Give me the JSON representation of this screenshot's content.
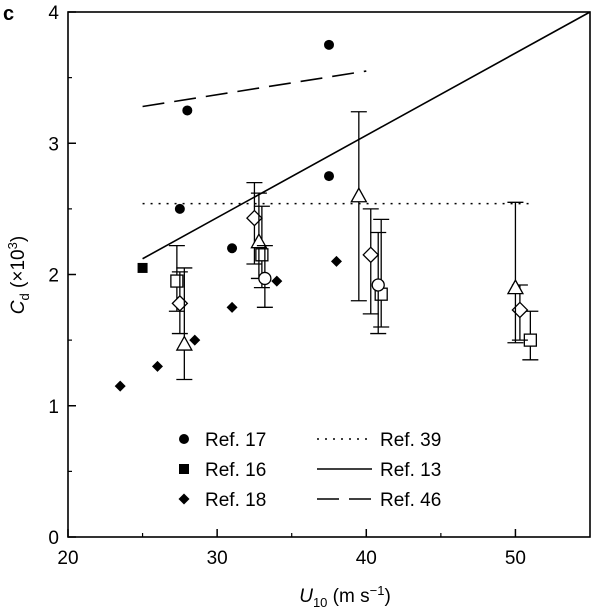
{
  "chart_data": {
    "type": "scatter",
    "panel_label": "c",
    "xlabel": {
      "main": "U",
      "sub": "10",
      "unit_open": " (m s",
      "unit_sup": "−1",
      "unit_close": ")"
    },
    "ylabel": {
      "main": "C",
      "sub": "d",
      "unit_open": " (×10",
      "unit_sup": "3",
      "unit_close": ")"
    },
    "xlim": [
      20,
      55
    ],
    "ylim": [
      0,
      4
    ],
    "xticks": [
      20,
      30,
      40,
      50
    ],
    "yticks": [
      0,
      1,
      2,
      3,
      4
    ],
    "grid": false,
    "legend_position": "bottom-center",
    "series": [
      {
        "name": "Ref. 17",
        "kind": "point",
        "marker": "circle",
        "points": [
          [
            27.5,
            2.5
          ],
          [
            28,
            3.25
          ],
          [
            31,
            2.2
          ],
          [
            37.5,
            3.75
          ],
          [
            37.5,
            2.75
          ]
        ]
      },
      {
        "name": "Ref. 16",
        "kind": "point",
        "marker": "square",
        "points": [
          [
            25,
            2.05
          ]
        ]
      },
      {
        "name": "Ref. 18",
        "kind": "point",
        "marker": "diamond",
        "points": [
          [
            23.5,
            1.15
          ],
          [
            26,
            1.3
          ],
          [
            28.5,
            1.5
          ],
          [
            31,
            1.75
          ],
          [
            34,
            1.95
          ],
          [
            38,
            2.1
          ]
        ]
      },
      {
        "name": "Ref. 39",
        "kind": "line",
        "style": "dotted",
        "points": [
          [
            25,
            2.54
          ],
          [
            51,
            2.54
          ]
        ]
      },
      {
        "name": "Ref. 13",
        "kind": "line",
        "style": "solid",
        "points": [
          [
            25,
            2.12
          ],
          [
            55,
            4.0
          ]
        ]
      },
      {
        "name": "Ref. 46",
        "kind": "line",
        "style": "dashed",
        "points": [
          [
            25,
            3.28
          ],
          [
            40,
            3.55
          ]
        ]
      },
      {
        "name": "",
        "kind": "errorbar",
        "marker": "open-square",
        "points": [
          [
            27.3,
            1.95,
            1.72,
            2.22
          ],
          [
            33,
            2.15,
            1.9,
            2.52
          ],
          [
            41,
            1.85,
            1.6,
            2.42
          ],
          [
            51,
            1.5,
            1.35,
            1.72
          ]
        ]
      },
      {
        "name": "",
        "kind": "errorbar",
        "marker": "open-diamond",
        "points": [
          [
            27.5,
            1.78,
            1.55,
            2.02
          ],
          [
            32.5,
            2.43,
            2.08,
            2.7
          ],
          [
            40.3,
            2.15,
            1.7,
            2.5
          ],
          [
            50.3,
            1.73,
            1.5,
            1.92
          ]
        ]
      },
      {
        "name": "",
        "kind": "errorbar",
        "marker": "open-triangle",
        "points": [
          [
            27.8,
            1.47,
            1.2,
            2.05
          ],
          [
            32.8,
            2.25,
            1.97,
            2.62
          ],
          [
            39.5,
            2.6,
            1.8,
            3.24
          ],
          [
            50,
            1.9,
            1.48,
            2.55
          ]
        ]
      },
      {
        "name": "",
        "kind": "errorbar",
        "marker": "open-circle",
        "points": [
          [
            33.2,
            1.97,
            1.75,
            2.22
          ],
          [
            40.8,
            1.92,
            1.55,
            2.32
          ]
        ]
      }
    ],
    "legend": [
      {
        "label": "Ref. 17",
        "symbol": "circle"
      },
      {
        "label": "Ref. 16",
        "symbol": "square"
      },
      {
        "label": "Ref. 18",
        "symbol": "diamond"
      },
      {
        "label": "Ref. 39",
        "symbol": "dotted"
      },
      {
        "label": "Ref. 13",
        "symbol": "solid"
      },
      {
        "label": "Ref. 46",
        "symbol": "dashed"
      }
    ]
  }
}
